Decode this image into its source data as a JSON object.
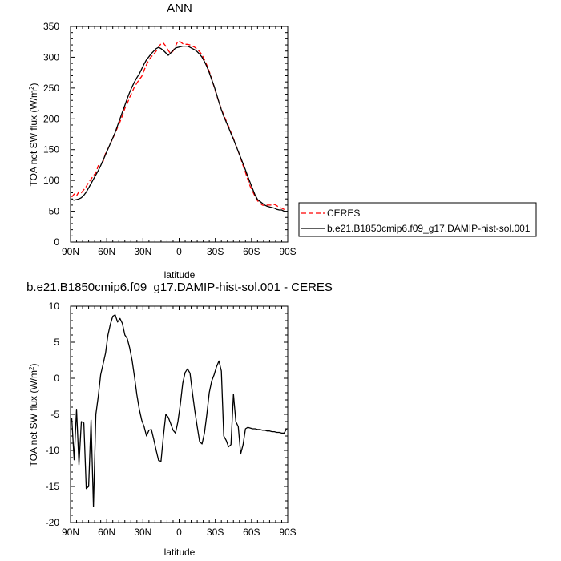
{
  "chart_data": [
    {
      "type": "line",
      "title": "ANN",
      "xlabel": "latitude",
      "ylabel": "TOA net SW flux (W/m",
      "ylabel_sup": "2",
      "ylabel_end": ")",
      "xlim": [
        90,
        -90
      ],
      "ylim": [
        0,
        350
      ],
      "x_ticks": [
        90,
        60,
        30,
        0,
        -30,
        -60,
        -90
      ],
      "x_tick_labels": [
        "90N",
        "60N",
        "30N",
        "0",
        "30S",
        "60S",
        "90S"
      ],
      "y_ticks": [
        0,
        50,
        100,
        150,
        200,
        250,
        300,
        350
      ],
      "y_tick_labels": [
        "0",
        "50",
        "100",
        "150",
        "200",
        "250",
        "300",
        "350"
      ],
      "legend_placement": "right",
      "series": [
        {
          "name": "CERES",
          "color": "#ff0000",
          "dash": "dashed",
          "x": [
            89,
            87,
            85,
            83,
            81,
            79,
            77,
            75,
            73,
            71,
            69,
            67,
            65,
            63,
            61,
            59,
            57,
            55,
            53,
            51,
            49,
            47,
            45,
            43,
            41,
            39,
            37,
            35,
            33,
            31,
            29,
            27,
            25,
            23,
            21,
            19,
            17,
            15,
            13,
            11,
            9,
            7,
            5,
            3,
            1,
            -1,
            -3,
            -5,
            -7,
            -9,
            -11,
            -13,
            -15,
            -17,
            -19,
            -21,
            -23,
            -25,
            -27,
            -29,
            -31,
            -33,
            -35,
            -37,
            -39,
            -41,
            -43,
            -45,
            -47,
            -49,
            -51,
            -53,
            -55,
            -57,
            -59,
            -61,
            -63,
            -65,
            -67,
            -69,
            -71,
            -73,
            -75,
            -77,
            -79,
            -81,
            -83,
            -85,
            -87,
            -89
          ],
          "y": [
            73,
            78,
            75,
            82,
            80,
            85,
            90,
            97,
            102,
            108,
            112,
            124,
            126,
            131,
            144,
            151,
            160,
            168,
            177,
            186,
            195,
            205,
            217,
            225,
            235,
            243,
            252,
            258,
            264,
            269,
            279,
            288,
            296,
            301,
            305,
            310,
            316,
            322,
            323,
            318,
            311,
            306,
            310,
            318,
            326,
            325,
            322,
            321,
            321,
            320,
            318,
            316,
            313,
            309,
            304,
            296,
            287,
            277,
            265,
            252,
            239,
            227,
            216,
            206,
            197,
            188,
            178,
            168,
            157,
            147,
            136,
            124,
            113,
            101,
            90,
            82,
            74,
            67,
            63,
            60,
            59,
            60,
            60,
            60,
            61,
            59,
            56,
            55,
            53,
            51
          ]
        },
        {
          "name": "b.e21.B1850cmip6.f09_g17.DAMIP-hist-sol.001",
          "color": "#000000",
          "dash": "solid",
          "x": [
            89,
            87,
            85,
            83,
            81,
            79,
            77,
            75,
            73,
            71,
            69,
            67,
            65,
            63,
            61,
            59,
            57,
            55,
            53,
            51,
            49,
            47,
            45,
            43,
            41,
            39,
            37,
            35,
            33,
            31,
            29,
            27,
            25,
            23,
            21,
            19,
            17,
            15,
            13,
            11,
            9,
            7,
            5,
            3,
            1,
            -1,
            -3,
            -5,
            -7,
            -9,
            -11,
            -13,
            -15,
            -17,
            -19,
            -21,
            -23,
            -25,
            -27,
            -29,
            -31,
            -33,
            -35,
            -37,
            -39,
            -41,
            -43,
            -45,
            -47,
            -49,
            -51,
            -53,
            -55,
            -57,
            -59,
            -61,
            -63,
            -65,
            -67,
            -69,
            -71,
            -73,
            -75,
            -77,
            -79,
            -81,
            -83,
            -85,
            -87,
            -89
          ],
          "y": [
            69,
            68,
            69,
            70,
            72,
            76,
            81,
            88,
            95,
            102,
            109,
            116,
            124,
            133,
            142,
            151,
            160,
            169,
            178,
            189,
            200,
            211,
            222,
            233,
            243,
            252,
            260,
            267,
            273,
            281,
            289,
            296,
            301,
            306,
            310,
            314,
            316,
            314,
            311,
            307,
            303,
            307,
            311,
            315,
            316,
            317,
            318,
            318,
            318,
            316,
            314,
            312,
            309,
            305,
            300,
            293,
            285,
            275,
            264,
            253,
            240,
            227,
            215,
            204,
            195,
            186,
            176,
            167,
            157,
            147,
            137,
            127,
            117,
            106,
            96,
            86,
            76,
            69,
            66,
            63,
            60,
            58,
            57,
            56,
            55,
            53,
            52,
            52,
            50,
            49
          ]
        }
      ]
    },
    {
      "type": "line",
      "title": "b.e21.B1850cmip6.f09_g17.DAMIP-hist-sol.001 - CERES",
      "xlabel": "latitude",
      "ylabel": "TOA net SW flux (W/m",
      "ylabel_sup": "2",
      "ylabel_end": ")",
      "xlim": [
        90,
        -90
      ],
      "ylim": [
        -20,
        10
      ],
      "x_ticks": [
        90,
        60,
        30,
        0,
        -30,
        -60,
        -90
      ],
      "x_tick_labels": [
        "90N",
        "60N",
        "30N",
        "0",
        "30S",
        "60S",
        "90S"
      ],
      "y_ticks": [
        -20,
        -15,
        -10,
        -5,
        0,
        5,
        10
      ],
      "y_tick_labels": [
        "-20",
        "-15",
        "-10",
        "-5",
        "0",
        "5",
        "10"
      ],
      "series": [
        {
          "color": "#000000",
          "dash": "solid",
          "x": [
            89,
            87,
            85,
            83,
            81,
            79,
            77,
            75,
            73,
            71,
            69,
            67,
            65,
            63,
            61,
            59,
            57,
            55,
            53,
            51,
            49,
            47,
            45,
            43,
            41,
            39,
            37,
            35,
            33,
            31,
            29,
            27,
            25,
            23,
            21,
            19,
            17,
            15,
            13,
            11,
            9,
            7,
            5,
            3,
            1,
            -1,
            -3,
            -5,
            -7,
            -9,
            -11,
            -13,
            -15,
            -17,
            -19,
            -21,
            -23,
            -25,
            -27,
            -29,
            -31,
            -33,
            -35,
            -37,
            -39,
            -41,
            -43,
            -45,
            -47,
            -49,
            -51,
            -53,
            -55,
            -57,
            -59,
            -61,
            -63,
            -65,
            -67,
            -69,
            -71,
            -73,
            -75,
            -77,
            -79,
            -81,
            -83,
            -85,
            -87,
            -89
          ],
          "y": [
            -5.5,
            -11.3,
            -4.3,
            -12.0,
            -6.0,
            -6.2,
            -15.3,
            -15.0,
            -5.8,
            -17.8,
            -5.0,
            -2.5,
            0.5,
            2.0,
            3.5,
            6.0,
            7.5,
            8.6,
            8.8,
            7.8,
            8.3,
            7.6,
            6.0,
            5.5,
            4.2,
            2.5,
            0.2,
            -2.3,
            -4.3,
            -5.8,
            -6.7,
            -8.0,
            -7.2,
            -7.1,
            -8.5,
            -10.0,
            -11.4,
            -11.5,
            -8.0,
            -5.0,
            -5.4,
            -6.3,
            -7.2,
            -7.6,
            -6.0,
            -3.6,
            -0.7,
            0.8,
            1.3,
            0.7,
            -2.0,
            -4.5,
            -6.7,
            -8.8,
            -9.1,
            -7.6,
            -5.0,
            -2.0,
            -0.4,
            0.5,
            1.6,
            2.4,
            1.0,
            -8.0,
            -8.6,
            -9.5,
            -9.2,
            -2.2,
            -6.0,
            -6.7,
            -10.5,
            -9.2,
            -7.0,
            -6.8,
            -6.9,
            -7.0,
            -7.0,
            -7.1,
            -7.1,
            -7.2,
            -7.2,
            -7.3,
            -7.3,
            -7.4,
            -7.4,
            -7.5,
            -7.5,
            -7.6,
            -7.6,
            -7.0
          ]
        }
      ]
    }
  ]
}
